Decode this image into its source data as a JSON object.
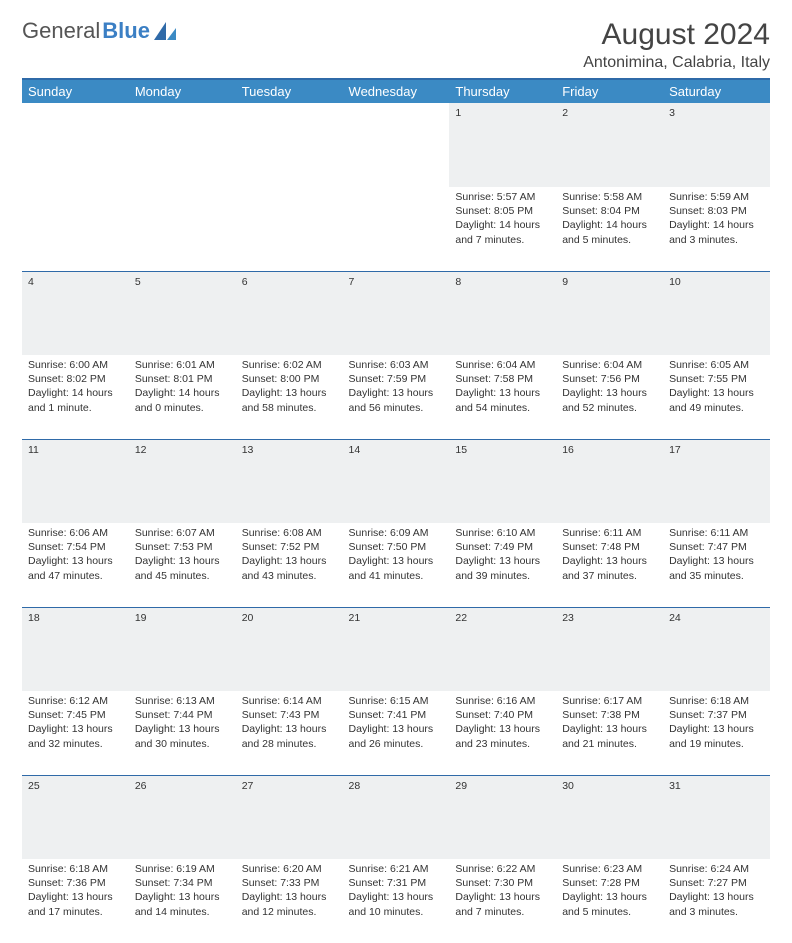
{
  "brand": {
    "part1": "General",
    "part2": "Blue"
  },
  "title": "August 2024",
  "location": "Antonimina, Calabria, Italy",
  "colors": {
    "header_bg": "#3b8ac4",
    "rule": "#2f6aa8",
    "daynum_bg": "#eef0f1",
    "text": "#333333"
  },
  "day_headers": [
    "Sunday",
    "Monday",
    "Tuesday",
    "Wednesday",
    "Thursday",
    "Friday",
    "Saturday"
  ],
  "weeks": [
    [
      null,
      null,
      null,
      null,
      {
        "n": "1",
        "sr": "Sunrise: 5:57 AM",
        "ss": "Sunset: 8:05 PM",
        "d1": "Daylight: 14 hours",
        "d2": "and 7 minutes."
      },
      {
        "n": "2",
        "sr": "Sunrise: 5:58 AM",
        "ss": "Sunset: 8:04 PM",
        "d1": "Daylight: 14 hours",
        "d2": "and 5 minutes."
      },
      {
        "n": "3",
        "sr": "Sunrise: 5:59 AM",
        "ss": "Sunset: 8:03 PM",
        "d1": "Daylight: 14 hours",
        "d2": "and 3 minutes."
      }
    ],
    [
      {
        "n": "4",
        "sr": "Sunrise: 6:00 AM",
        "ss": "Sunset: 8:02 PM",
        "d1": "Daylight: 14 hours",
        "d2": "and 1 minute."
      },
      {
        "n": "5",
        "sr": "Sunrise: 6:01 AM",
        "ss": "Sunset: 8:01 PM",
        "d1": "Daylight: 14 hours",
        "d2": "and 0 minutes."
      },
      {
        "n": "6",
        "sr": "Sunrise: 6:02 AM",
        "ss": "Sunset: 8:00 PM",
        "d1": "Daylight: 13 hours",
        "d2": "and 58 minutes."
      },
      {
        "n": "7",
        "sr": "Sunrise: 6:03 AM",
        "ss": "Sunset: 7:59 PM",
        "d1": "Daylight: 13 hours",
        "d2": "and 56 minutes."
      },
      {
        "n": "8",
        "sr": "Sunrise: 6:04 AM",
        "ss": "Sunset: 7:58 PM",
        "d1": "Daylight: 13 hours",
        "d2": "and 54 minutes."
      },
      {
        "n": "9",
        "sr": "Sunrise: 6:04 AM",
        "ss": "Sunset: 7:56 PM",
        "d1": "Daylight: 13 hours",
        "d2": "and 52 minutes."
      },
      {
        "n": "10",
        "sr": "Sunrise: 6:05 AM",
        "ss": "Sunset: 7:55 PM",
        "d1": "Daylight: 13 hours",
        "d2": "and 49 minutes."
      }
    ],
    [
      {
        "n": "11",
        "sr": "Sunrise: 6:06 AM",
        "ss": "Sunset: 7:54 PM",
        "d1": "Daylight: 13 hours",
        "d2": "and 47 minutes."
      },
      {
        "n": "12",
        "sr": "Sunrise: 6:07 AM",
        "ss": "Sunset: 7:53 PM",
        "d1": "Daylight: 13 hours",
        "d2": "and 45 minutes."
      },
      {
        "n": "13",
        "sr": "Sunrise: 6:08 AM",
        "ss": "Sunset: 7:52 PM",
        "d1": "Daylight: 13 hours",
        "d2": "and 43 minutes."
      },
      {
        "n": "14",
        "sr": "Sunrise: 6:09 AM",
        "ss": "Sunset: 7:50 PM",
        "d1": "Daylight: 13 hours",
        "d2": "and 41 minutes."
      },
      {
        "n": "15",
        "sr": "Sunrise: 6:10 AM",
        "ss": "Sunset: 7:49 PM",
        "d1": "Daylight: 13 hours",
        "d2": "and 39 minutes."
      },
      {
        "n": "16",
        "sr": "Sunrise: 6:11 AM",
        "ss": "Sunset: 7:48 PM",
        "d1": "Daylight: 13 hours",
        "d2": "and 37 minutes."
      },
      {
        "n": "17",
        "sr": "Sunrise: 6:11 AM",
        "ss": "Sunset: 7:47 PM",
        "d1": "Daylight: 13 hours",
        "d2": "and 35 minutes."
      }
    ],
    [
      {
        "n": "18",
        "sr": "Sunrise: 6:12 AM",
        "ss": "Sunset: 7:45 PM",
        "d1": "Daylight: 13 hours",
        "d2": "and 32 minutes."
      },
      {
        "n": "19",
        "sr": "Sunrise: 6:13 AM",
        "ss": "Sunset: 7:44 PM",
        "d1": "Daylight: 13 hours",
        "d2": "and 30 minutes."
      },
      {
        "n": "20",
        "sr": "Sunrise: 6:14 AM",
        "ss": "Sunset: 7:43 PM",
        "d1": "Daylight: 13 hours",
        "d2": "and 28 minutes."
      },
      {
        "n": "21",
        "sr": "Sunrise: 6:15 AM",
        "ss": "Sunset: 7:41 PM",
        "d1": "Daylight: 13 hours",
        "d2": "and 26 minutes."
      },
      {
        "n": "22",
        "sr": "Sunrise: 6:16 AM",
        "ss": "Sunset: 7:40 PM",
        "d1": "Daylight: 13 hours",
        "d2": "and 23 minutes."
      },
      {
        "n": "23",
        "sr": "Sunrise: 6:17 AM",
        "ss": "Sunset: 7:38 PM",
        "d1": "Daylight: 13 hours",
        "d2": "and 21 minutes."
      },
      {
        "n": "24",
        "sr": "Sunrise: 6:18 AM",
        "ss": "Sunset: 7:37 PM",
        "d1": "Daylight: 13 hours",
        "d2": "and 19 minutes."
      }
    ],
    [
      {
        "n": "25",
        "sr": "Sunrise: 6:18 AM",
        "ss": "Sunset: 7:36 PM",
        "d1": "Daylight: 13 hours",
        "d2": "and 17 minutes."
      },
      {
        "n": "26",
        "sr": "Sunrise: 6:19 AM",
        "ss": "Sunset: 7:34 PM",
        "d1": "Daylight: 13 hours",
        "d2": "and 14 minutes."
      },
      {
        "n": "27",
        "sr": "Sunrise: 6:20 AM",
        "ss": "Sunset: 7:33 PM",
        "d1": "Daylight: 13 hours",
        "d2": "and 12 minutes."
      },
      {
        "n": "28",
        "sr": "Sunrise: 6:21 AM",
        "ss": "Sunset: 7:31 PM",
        "d1": "Daylight: 13 hours",
        "d2": "and 10 minutes."
      },
      {
        "n": "29",
        "sr": "Sunrise: 6:22 AM",
        "ss": "Sunset: 7:30 PM",
        "d1": "Daylight: 13 hours",
        "d2": "and 7 minutes."
      },
      {
        "n": "30",
        "sr": "Sunrise: 6:23 AM",
        "ss": "Sunset: 7:28 PM",
        "d1": "Daylight: 13 hours",
        "d2": "and 5 minutes."
      },
      {
        "n": "31",
        "sr": "Sunrise: 6:24 AM",
        "ss": "Sunset: 7:27 PM",
        "d1": "Daylight: 13 hours",
        "d2": "and 3 minutes."
      }
    ]
  ]
}
